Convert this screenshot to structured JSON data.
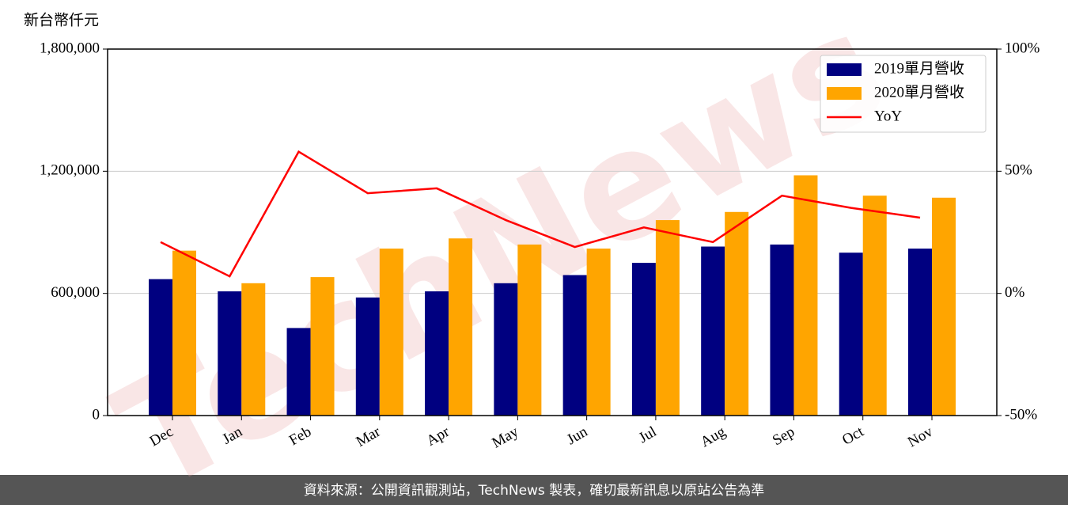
{
  "chart_data": {
    "type": "bar",
    "y_label": "新台幣仟元",
    "watermark": "TechNews",
    "categories": [
      "Dec",
      "Jan",
      "Feb",
      "Mar",
      "Apr",
      "May",
      "Jun",
      "Jul",
      "Aug",
      "Sep",
      "Oct",
      "Nov"
    ],
    "series": [
      {
        "name": "2019單月營收",
        "color": "#000080",
        "values": [
          670000,
          610000,
          430000,
          580000,
          610000,
          650000,
          690000,
          750000,
          830000,
          840000,
          800000,
          820000
        ]
      },
      {
        "name": "2020單月營收",
        "color": "#ffa500",
        "values": [
          810000,
          650000,
          680000,
          820000,
          870000,
          840000,
          820000,
          960000,
          1000000,
          1180000,
          1080000,
          1070000
        ]
      },
      {
        "name": "YoY",
        "color": "#ff0000",
        "type": "line",
        "axis": "y2",
        "values": [
          21,
          7,
          58,
          41,
          43,
          30,
          19,
          27,
          21,
          40,
          35,
          31
        ]
      }
    ],
    "ylim": [
      0,
      1800000
    ],
    "yticks": [
      0,
      {
        "value": 600000,
        "label": "600,000"
      },
      {
        "value": 1200000,
        "label": "1,200,000"
      },
      {
        "value": 1800000,
        "label": "1,800,000"
      }
    ],
    "y2lim": [
      -50,
      100
    ],
    "y2ticks": [
      {
        "value": -50,
        "label": "-50%"
      },
      {
        "value": 0,
        "label": "0%"
      },
      {
        "value": 50,
        "label": "50%"
      },
      {
        "value": 100,
        "label": "100%"
      }
    ],
    "grid": true,
    "legend": "upper right"
  },
  "footer": "資料來源：公開資訊觀測站，TechNews 製表，確切最新訊息以原站公告為準"
}
